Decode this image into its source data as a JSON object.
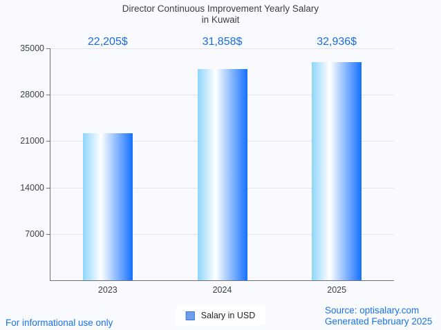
{
  "title": {
    "line1": "Director Continuous Improvement Yearly Salary",
    "line2": "in Kuwait"
  },
  "chart_data": {
    "type": "bar",
    "title": "Director Continuous Improvement Yearly Salary in Kuwait",
    "categories": [
      "2023",
      "2024",
      "2025"
    ],
    "series": [
      {
        "name": "Salary in USD",
        "values": [
          22205,
          31858,
          32936
        ]
      }
    ],
    "value_labels": [
      "22,205$",
      "31,858$",
      "32,936$"
    ],
    "xlabel": "",
    "ylabel": "",
    "ylim": [
      0,
      35000
    ],
    "yticks": [
      35000,
      28000,
      21000,
      14000,
      7000
    ],
    "grid": "horizontal-only",
    "legend_position": "bottom-center"
  },
  "legend": {
    "label": "Salary in USD"
  },
  "footer": {
    "disclaimer": "For informational use only",
    "source": "Source: optisalary.com",
    "generated": "Generated February 2025"
  },
  "colors": {
    "background": "#f8fafd",
    "title_text": "#3c4043",
    "axis_line": "#6e7176",
    "gridline": "#e2e4e8",
    "value_label_blue": "#1a6be0",
    "footer_blue": "#1a73e8",
    "bar_gradient_left": "#8ed5fa",
    "bar_gradient_mid": "#ffffff",
    "bar_gradient_right": "#1471fd",
    "legend_swatch_fill": "#6d9eeb",
    "legend_swatch_border": "#3e78d6"
  }
}
